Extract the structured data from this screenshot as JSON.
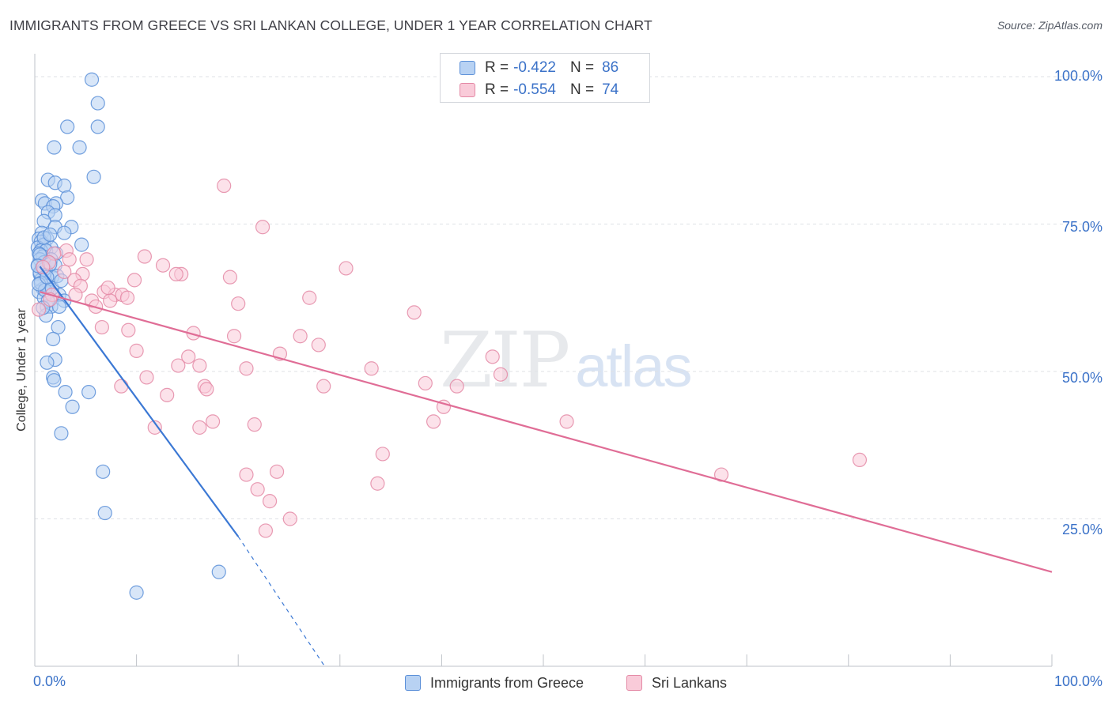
{
  "header": {
    "title": "IMMIGRANTS FROM GREECE VS SRI LANKAN COLLEGE, UNDER 1 YEAR CORRELATION CHART",
    "source": "Source: ZipAtlas.com"
  },
  "watermark": {
    "zip": "ZIP",
    "atlas": "atlas"
  },
  "legend": {
    "series1": {
      "r_label": "R = ",
      "r_value": "-0.422",
      "n_label": "N = ",
      "n_value": "86"
    },
    "series2": {
      "r_label": "R = ",
      "r_value": "-0.554",
      "n_label": "N = ",
      "n_value": "74"
    }
  },
  "colors": {
    "blue_fill": "#b8d2f3",
    "blue_stroke": "#5a8fd8",
    "blue_line": "#3b78d4",
    "pink_fill": "#f9cbd9",
    "pink_stroke": "#e48aa6",
    "pink_line": "#e06d96",
    "grid": "#dfe2e6",
    "axis_text": "#3b72c8"
  },
  "chart_data": {
    "type": "scatter",
    "title": "IMMIGRANTS FROM GREECE VS SRI LANKAN COLLEGE, UNDER 1 YEAR CORRELATION CHART",
    "xlabel": "",
    "ylabel": "College, Under 1 year",
    "xlim": [
      0,
      100
    ],
    "ylim": [
      0,
      100
    ],
    "x_tick_labels": [
      "0.0%",
      "100.0%"
    ],
    "y_tick_labels": [
      "100.0%",
      "75.0%",
      "50.0%",
      "25.0%"
    ],
    "y_tick_values": [
      100,
      75,
      50,
      25
    ],
    "legend_position": "bottom",
    "series": [
      {
        "name": "Immigrants from Greece",
        "r": -0.422,
        "n": 86,
        "trend": {
          "x0": 0.5,
          "y0": 67.8,
          "x1": 20,
          "y1": 22.0,
          "dashed_to_x": 28.5,
          "dashed_to_y": 0
        },
        "points": [
          [
            5.6,
            99.5
          ],
          [
            6.2,
            95.5
          ],
          [
            3.2,
            91.5
          ],
          [
            6.2,
            91.5
          ],
          [
            1.9,
            88
          ],
          [
            4.4,
            88
          ],
          [
            5.8,
            83
          ],
          [
            1.3,
            82.5
          ],
          [
            2.0,
            82
          ],
          [
            2.9,
            81.5
          ],
          [
            3.2,
            79.5
          ],
          [
            0.7,
            79
          ],
          [
            1.0,
            78.5
          ],
          [
            2.1,
            78.5
          ],
          [
            1.8,
            78
          ],
          [
            1.3,
            77
          ],
          [
            2.0,
            76.5
          ],
          [
            0.9,
            75.5
          ],
          [
            3.6,
            74.5
          ],
          [
            2.0,
            74.5
          ],
          [
            2.9,
            73.5
          ],
          [
            0.7,
            73.5
          ],
          [
            1.2,
            72.5
          ],
          [
            0.4,
            72.5
          ],
          [
            0.6,
            72
          ],
          [
            0.9,
            71.5
          ],
          [
            4.6,
            71.5
          ],
          [
            1.6,
            71
          ],
          [
            0.3,
            71
          ],
          [
            0.6,
            70.5
          ],
          [
            1.1,
            70.5
          ],
          [
            2.1,
            70
          ],
          [
            0.4,
            70
          ],
          [
            0.8,
            69.5
          ],
          [
            1.6,
            69
          ],
          [
            0.5,
            69
          ],
          [
            0.9,
            68.5
          ],
          [
            1.4,
            68.5
          ],
          [
            0.3,
            68
          ],
          [
            2.0,
            68
          ],
          [
            0.7,
            67.5
          ],
          [
            1.1,
            67
          ],
          [
            0.5,
            66.5
          ],
          [
            1.7,
            66
          ],
          [
            0.6,
            65.5
          ],
          [
            1.2,
            64.5
          ],
          [
            0.8,
            64
          ],
          [
            0.4,
            63.5
          ],
          [
            1.4,
            63.5
          ],
          [
            2.4,
            63
          ],
          [
            0.9,
            62.5
          ],
          [
            2.9,
            62
          ],
          [
            1.2,
            61
          ],
          [
            1.6,
            61
          ],
          [
            2.4,
            61
          ],
          [
            1.1,
            59.5
          ],
          [
            2.3,
            57.5
          ],
          [
            1.8,
            55.5
          ],
          [
            2.0,
            52
          ],
          [
            1.2,
            51.5
          ],
          [
            1.8,
            49
          ],
          [
            1.9,
            48.5
          ],
          [
            3.0,
            46.5
          ],
          [
            5.3,
            46.5
          ],
          [
            3.7,
            44
          ],
          [
            2.6,
            39.5
          ],
          [
            6.7,
            33
          ],
          [
            6.9,
            26
          ],
          [
            18.1,
            16
          ],
          [
            10.0,
            12.5
          ],
          [
            0.5,
            66.8
          ],
          [
            0.9,
            67.3
          ],
          [
            1.5,
            68.2
          ],
          [
            0.6,
            65.0
          ],
          [
            1.0,
            63.8
          ],
          [
            0.4,
            64.8
          ],
          [
            1.3,
            62.0
          ],
          [
            0.8,
            60.8
          ],
          [
            2.2,
            66.2
          ],
          [
            1.7,
            64.1
          ],
          [
            0.5,
            69.8
          ],
          [
            1.2,
            66.0
          ],
          [
            0.3,
            67.9
          ],
          [
            2.6,
            65.4
          ],
          [
            0.9,
            72.7
          ],
          [
            1.5,
            73.2
          ]
        ]
      },
      {
        "name": "Sri Lankans",
        "r": -0.554,
        "n": 74,
        "trend": {
          "x0": 0.5,
          "y0": 63.5,
          "x1": 100,
          "y1": 16.0
        },
        "points": [
          [
            18.6,
            81.5
          ],
          [
            22.4,
            74.5
          ],
          [
            3.1,
            70.5
          ],
          [
            1.9,
            70
          ],
          [
            10.8,
            69.5
          ],
          [
            5.1,
            69
          ],
          [
            3.4,
            69
          ],
          [
            12.6,
            68
          ],
          [
            1.4,
            68.5
          ],
          [
            30.6,
            67.5
          ],
          [
            4.7,
            66.5
          ],
          [
            14.4,
            66.5
          ],
          [
            13.9,
            66.5
          ],
          [
            19.2,
            66
          ],
          [
            9.8,
            65.5
          ],
          [
            3.9,
            65.5
          ],
          [
            4.5,
            64.5
          ],
          [
            6.8,
            63.5
          ],
          [
            1.7,
            63
          ],
          [
            7.9,
            63
          ],
          [
            8.6,
            63
          ],
          [
            27.0,
            62.5
          ],
          [
            5.6,
            62
          ],
          [
            7.4,
            62
          ],
          [
            20.0,
            61.5
          ],
          [
            6.0,
            61
          ],
          [
            0.4,
            60.5
          ],
          [
            37.3,
            60
          ],
          [
            6.6,
            57.5
          ],
          [
            9.2,
            57
          ],
          [
            15.6,
            56.5
          ],
          [
            26.1,
            56
          ],
          [
            19.6,
            56
          ],
          [
            27.9,
            54.5
          ],
          [
            10.0,
            53.5
          ],
          [
            24.1,
            53
          ],
          [
            45.0,
            52.5
          ],
          [
            15.1,
            52.5
          ],
          [
            14.1,
            51
          ],
          [
            16.2,
            51
          ],
          [
            20.8,
            50.5
          ],
          [
            33.1,
            50.5
          ],
          [
            45.8,
            49.5
          ],
          [
            11.0,
            49
          ],
          [
            38.4,
            48
          ],
          [
            41.5,
            47.5
          ],
          [
            28.4,
            47.5
          ],
          [
            8.5,
            47.5
          ],
          [
            16.7,
            47.5
          ],
          [
            16.9,
            47
          ],
          [
            13.0,
            46
          ],
          [
            40.2,
            44
          ],
          [
            17.5,
            41.5
          ],
          [
            52.3,
            41.5
          ],
          [
            39.2,
            41.5
          ],
          [
            21.6,
            41
          ],
          [
            11.8,
            40.5
          ],
          [
            16.2,
            40.5
          ],
          [
            34.2,
            36
          ],
          [
            81.1,
            35
          ],
          [
            23.8,
            33
          ],
          [
            20.8,
            32.5
          ],
          [
            67.5,
            32.5
          ],
          [
            33.7,
            31
          ],
          [
            21.9,
            30
          ],
          [
            23.1,
            28
          ],
          [
            25.1,
            25
          ],
          [
            22.7,
            23
          ],
          [
            2.9,
            66.9
          ],
          [
            7.2,
            64.2
          ],
          [
            0.8,
            67.7
          ],
          [
            4.0,
            63.0
          ],
          [
            1.5,
            62.2
          ],
          [
            9.1,
            62.5
          ]
        ]
      }
    ]
  },
  "bottom_legend": {
    "item1": "Immigrants from Greece",
    "item2": "Sri Lankans"
  }
}
